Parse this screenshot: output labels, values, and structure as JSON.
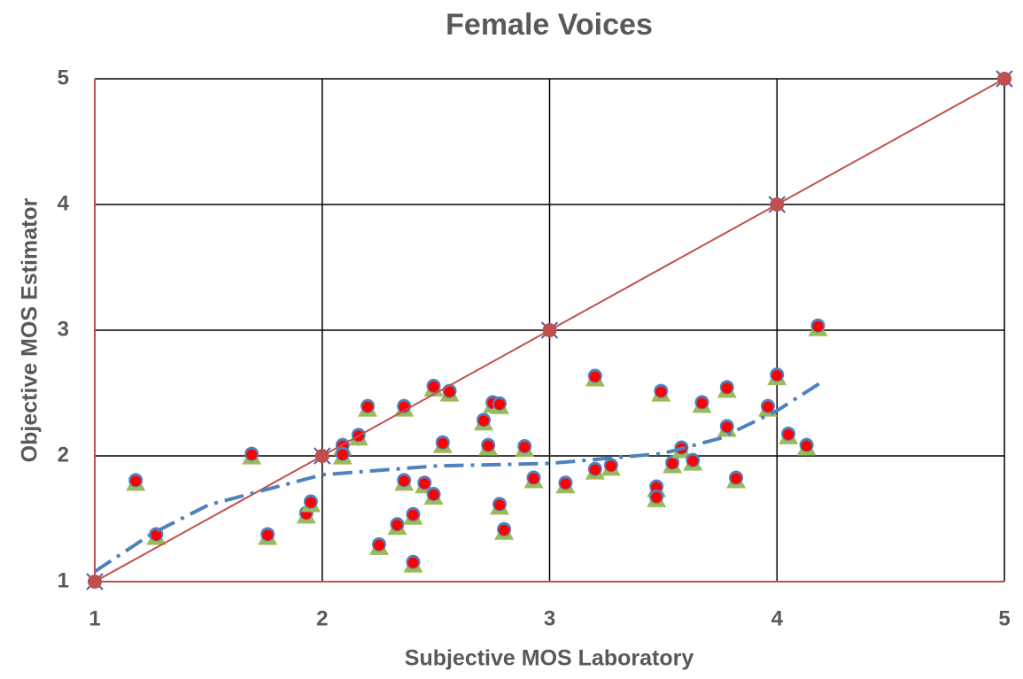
{
  "chart_data": {
    "type": "scatter",
    "title": "Female Voices",
    "x_label": "Subjective MOS Laboratory",
    "y_label": "Objective MOS Estimator",
    "xlim": [
      1,
      5
    ],
    "ylim": [
      1,
      5
    ],
    "xticks": [
      1,
      2,
      3,
      4,
      5
    ],
    "yticks": [
      1,
      2,
      3,
      4,
      5
    ],
    "grid": true,
    "series": [
      {
        "color": "#ff0000",
        "marker": "layered",
        "x": [
          1.18,
          1.27,
          1.69,
          1.76,
          1.93,
          1.95,
          2.09,
          2.09,
          2.2,
          2.16,
          2.25,
          2.36,
          2.36,
          2.33,
          2.4,
          2.4,
          2.45,
          2.49,
          2.49,
          2.56,
          2.53,
          2.71,
          2.75,
          2.78,
          2.73,
          2.78,
          2.8,
          2.89,
          2.93,
          3.07,
          3.2,
          3.2,
          3.27,
          3.47,
          3.47,
          3.49,
          3.54,
          3.58,
          3.63,
          3.67,
          3.78,
          3.78,
          3.82,
          3.96,
          4.0,
          4.05,
          4.13,
          4.18
        ],
        "values": [
          1.8,
          1.37,
          2.01,
          1.37,
          1.54,
          1.63,
          2.08,
          2.01,
          2.39,
          2.16,
          1.29,
          2.39,
          1.8,
          1.45,
          1.53,
          1.15,
          1.78,
          2.55,
          1.69,
          2.51,
          2.1,
          2.28,
          2.42,
          2.41,
          2.08,
          1.61,
          1.41,
          2.07,
          1.82,
          1.78,
          2.63,
          1.89,
          1.92,
          1.75,
          1.67,
          2.51,
          1.94,
          2.06,
          1.96,
          2.42,
          2.54,
          2.23,
          1.82,
          2.39,
          2.64,
          2.17,
          2.08,
          3.03
        ]
      },
      {
        "color": "#c0504d",
        "marker": "cross-dot",
        "line": "solid",
        "x": [
          1,
          2,
          3,
          4,
          5
        ],
        "values": [
          1,
          2,
          3,
          4,
          5
        ]
      },
      {
        "color": "#4f81bd",
        "marker": "none",
        "line": "dashdot",
        "x": [
          1,
          1.25,
          1.5,
          2,
          2.5,
          3,
          3.5,
          3.75,
          4,
          4.19
        ],
        "values": [
          1.08,
          1.38,
          1.61,
          1.85,
          1.92,
          1.94,
          2.02,
          2.14,
          2.36,
          2.58
        ]
      }
    ]
  }
}
